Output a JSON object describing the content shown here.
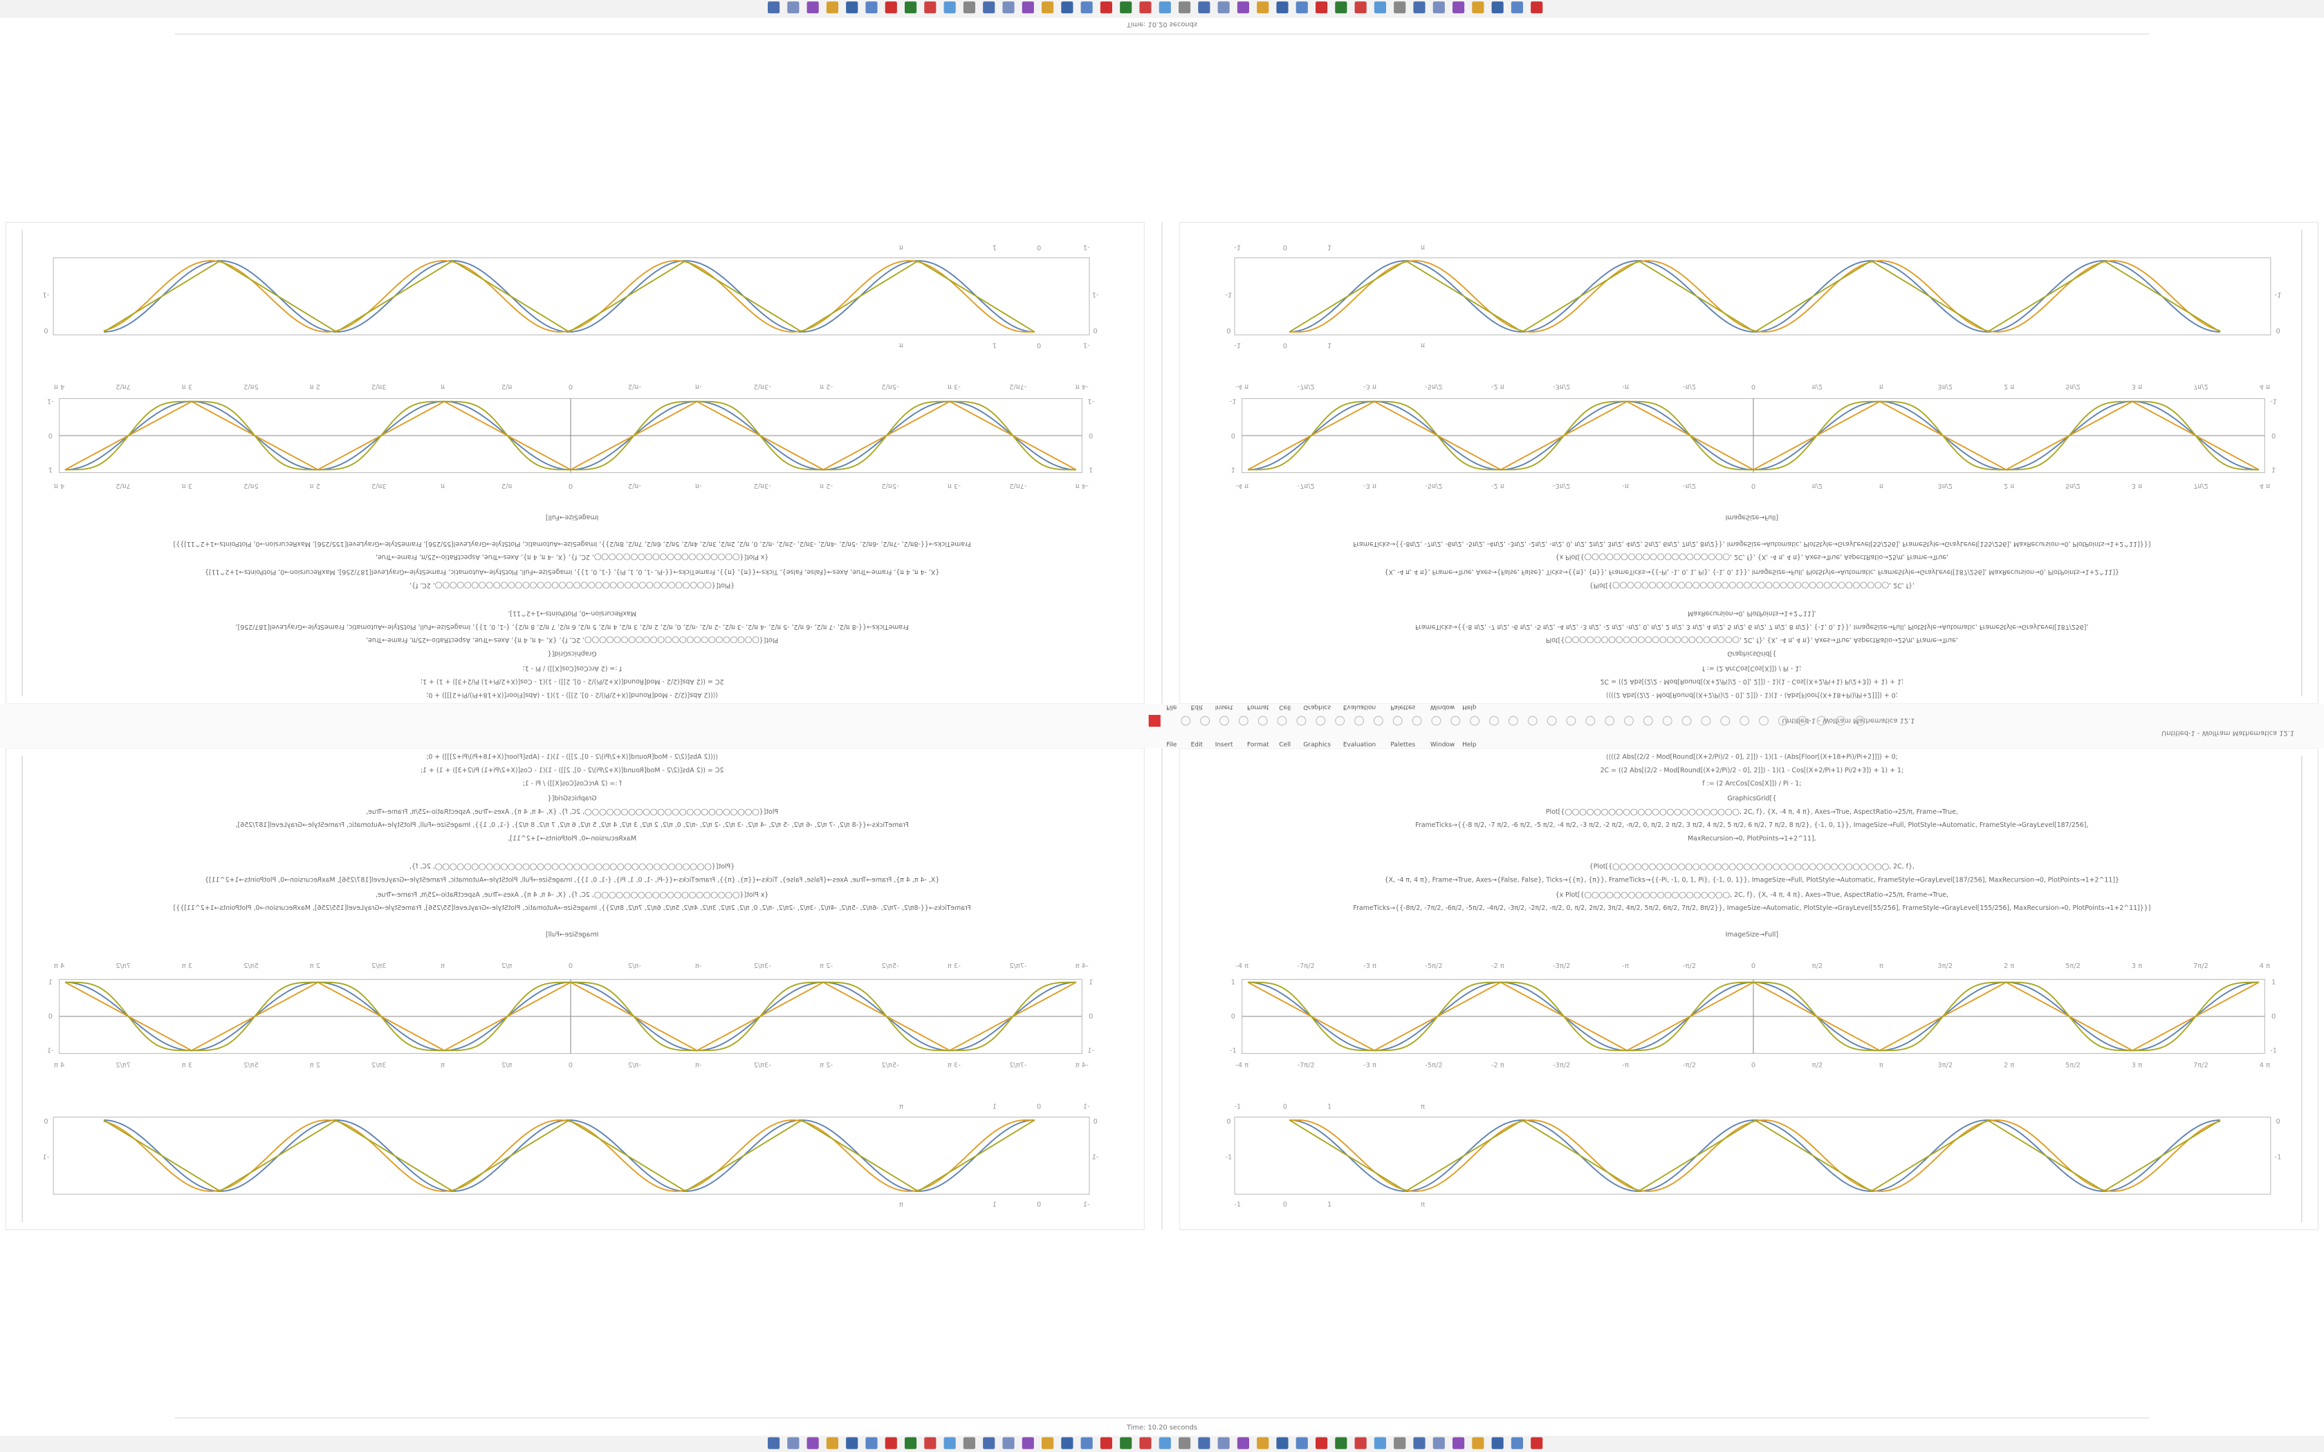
{
  "status": "Time: 10.20 seconds",
  "menu": [
    "File",
    "Edit",
    "Insert",
    "Format",
    "Cell",
    "Graphics",
    "Evaluation",
    "Palettes",
    "Window",
    "Help"
  ],
  "window_title": "Untitled-1 - Wolfram Mathematica 12.1",
  "code": [
    "⟨⟨((2 Abs[(2/2 - Mod[Round[(X+2/Pi)/2 - 0], 2]]) - 1)(1 - (Abs[Floor[(X+18+Pi)/Pi+2]]]) + 0;",
    "2C = ((2 Abs[(2/2 - Mod[Round[(X+2/Pi)/2 - 0], 2]]) - 1)(1 - Cos[(X+2/Pi+1) Pi/2+3]) + 1) + 1;",
    "f := (2 ArcCos[Cos[X]]) / Pi - 1;",
    "GraphicsGrid[{",
    "Plot[{◯◯◯◯◯◯◯◯◯◯◯◯◯◯◯◯◯◯◯◯◯◯◯◯, 2C, f}, {X, -4 π, 4 π}, Axes→True, AspectRatio→25/π, Frame→True,",
    "FrameTicks→{{-8 π/2, -7 π/2, -6 π/2, -5 π/2, -4 π/2, -3 π/2, -2 π/2, -π/2, 0, π/2, 2 π/2, 3 π/2, 4 π/2, 5 π/2, 6 π/2, 7 π/2, 8 π/2}, {-1, 0, 1}}, ImageSize→Full, PlotStyle→Automatic, FrameStyle→GrayLevel[187/256],",
    "MaxRecursion→0, PlotPoints→1+2^11],",
    "{Plot[{◯◯◯◯◯◯◯◯◯◯◯◯◯◯◯◯◯◯◯◯◯◯◯◯◯◯◯◯◯◯◯◯◯◯◯◯◯◯, 2C, f},",
    "{X, -4 π, 4 π}, Frame→True, Axes→{False, False}, Ticks→{{π}, {π}}, FrameTicks→{{-Pi, -1, 0, 1, Pi}, {-1, 0, 1}}, ImageSize→Full, PlotStyle→Automatic, FrameStyle→GrayLevel[187/256], MaxRecursion→0, PlotPoints→1+2^11]}",
    "{x Plot[{◯◯◯◯◯◯◯◯◯◯◯◯◯◯◯◯◯◯◯◯, 2C, f}, {X, -4 π, 4 π}, Axes→True, AspectRatio→25/π, Frame→True,",
    "FrameTicks→{{-8π/2, -7π/2, -6π/2, -5π/2, -4π/2, -3π/2, -2π/2, -π/2, 0, π/2, 2π/2, 3π/2, 4π/2, 5π/2, 6π/2, 7π/2, 8π/2}}, ImageSize→Automatic, PlotStyle→GrayLevel[55/256], FrameStyle→GrayLevel[155/256], MaxRecursion→0, PlotPoints→1+2^11]}}]",
    "ImageSize→Full]"
  ],
  "plot1": {
    "x_ticks": [
      "-4 π",
      "-7π/2",
      "-3 π",
      "-5π/2",
      "-2 π",
      "-3π/2",
      "-π",
      "-π/2",
      "0",
      "π/2",
      "π",
      "3π/2",
      "2 π",
      "5π/2",
      "3 π",
      "7π/2",
      "4 π"
    ],
    "y_ticks": [
      "1",
      "0",
      "-1"
    ]
  },
  "plot2": {
    "x_ticks": [
      "-1",
      "0",
      "1",
      "π"
    ],
    "y_ticks": [
      "0",
      "-1"
    ]
  }
}
